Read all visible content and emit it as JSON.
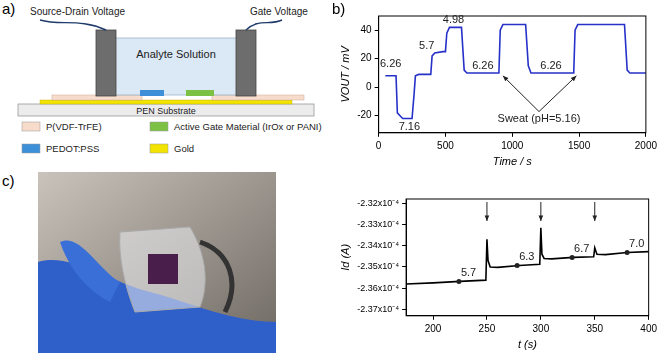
{
  "panel_labels": [
    "a)",
    "b)",
    "c)"
  ],
  "diagram": {
    "source_drain": "Source-Drain Voltage",
    "gate": "Gate Voltage",
    "solution": "Analyte Solution",
    "substrate": "PEN Substrate",
    "legend": [
      {
        "label": "P(VDF-TrFE)",
        "color": "#f7dccb"
      },
      {
        "label": "Active Gate Material (IrOx or PANI)",
        "color": "#7cc144"
      },
      {
        "label": "PEDOT:PSS",
        "color": "#3d8fd8"
      },
      {
        "label": "Gold",
        "color": "#f2e400"
      }
    ]
  },
  "chart_data": [
    {
      "type": "line",
      "x_label": "Time / s",
      "y_label": "VOUT / mV",
      "color": "#2631c8",
      "grid": false,
      "x": [
        50,
        130,
        140,
        160,
        180,
        250,
        265,
        275,
        300,
        390,
        400,
        420,
        480,
        500,
        510,
        530,
        600,
        620,
        640,
        660,
        900,
        910,
        930,
        1080,
        1100,
        1120,
        1140,
        1460,
        1470,
        1490,
        1840,
        1860,
        1880,
        2000
      ],
      "values": [
        8,
        8,
        -18,
        -20,
        -22,
        -22,
        -5,
        8,
        9,
        9,
        22,
        24,
        25,
        25,
        38,
        42,
        42,
        42,
        12,
        10,
        10,
        40,
        44,
        44,
        44,
        15,
        10,
        10,
        40,
        44,
        44,
        12,
        10,
        10
      ],
      "xlim": [
        0,
        2000
      ],
      "xticks": [
        0,
        500,
        1000,
        1500,
        2000
      ],
      "ylim": [
        -32,
        50
      ],
      "yticks": [
        -20,
        0,
        20,
        40
      ],
      "annotations": [
        {
          "text": "6.26",
          "x": 90,
          "y": 16
        },
        {
          "text": "7.16",
          "x": 230,
          "y": -28
        },
        {
          "text": "5.7",
          "x": 360,
          "y": 29
        },
        {
          "text": "4.98",
          "x": 560,
          "y": 47
        },
        {
          "text": "6.26",
          "x": 780,
          "y": 15
        },
        {
          "text": "6.26",
          "x": 1290,
          "y": 15
        },
        {
          "text": "Sweat (pH=5.16)",
          "x": 1200,
          "y": -22,
          "arrows": [
            [
              930,
              8
            ],
            [
              1480,
              8
            ]
          ]
        }
      ]
    },
    {
      "type": "line",
      "x_label": "t (s)",
      "y_label": "Id (A)",
      "color": "#000000",
      "grid": false,
      "x": [
        175,
        200,
        225,
        249,
        250,
        251,
        253,
        260,
        280,
        299,
        300,
        301,
        303,
        310,
        330,
        349,
        350,
        352,
        360,
        380,
        400
      ],
      "values": [
        -0.0002358,
        -0.00023575,
        -0.00023568,
        -0.00023562,
        -0.0002337,
        -0.0002347,
        -0.000235,
        -0.00023502,
        -0.00023493,
        -0.00023487,
        -0.00023315,
        -0.0002344,
        -0.0002346,
        -0.00023462,
        -0.00023455,
        -0.00023452,
        -0.0002341,
        -0.0002344,
        -0.00023442,
        -0.00023432,
        -0.00023428
      ],
      "xlim": [
        175,
        400
      ],
      "xticks": [
        200,
        250,
        300,
        350,
        400
      ],
      "ylim": [
        -0.0002373,
        -0.0002318
      ],
      "yticks": [
        {
          "value": -0.000232,
          "label": "-2.32x10⁻⁴"
        },
        {
          "value": -0.000233,
          "label": "-2.33x10⁻⁴"
        },
        {
          "value": -0.000234,
          "label": "-2.34x10⁻⁴"
        },
        {
          "value": -0.000235,
          "label": "-2.35x10⁻⁴"
        },
        {
          "value": -0.000236,
          "label": "-2.36x10⁻⁴"
        },
        {
          "value": -0.000237,
          "label": "-2.37x10⁻⁴"
        }
      ],
      "annotations": [
        {
          "text": "5.7",
          "x": 224,
          "y": -0.00023568,
          "marker": "circle"
        },
        {
          "text": "6.3",
          "x": 278,
          "y": -0.00023493,
          "marker": "circle"
        },
        {
          "text": "6.7",
          "x": 329,
          "y": -0.00023455,
          "marker": "circle"
        },
        {
          "text": "7.0",
          "x": 380,
          "y": -0.00023432,
          "marker": "circle"
        }
      ],
      "arrows": [
        250,
        300,
        350
      ]
    }
  ]
}
